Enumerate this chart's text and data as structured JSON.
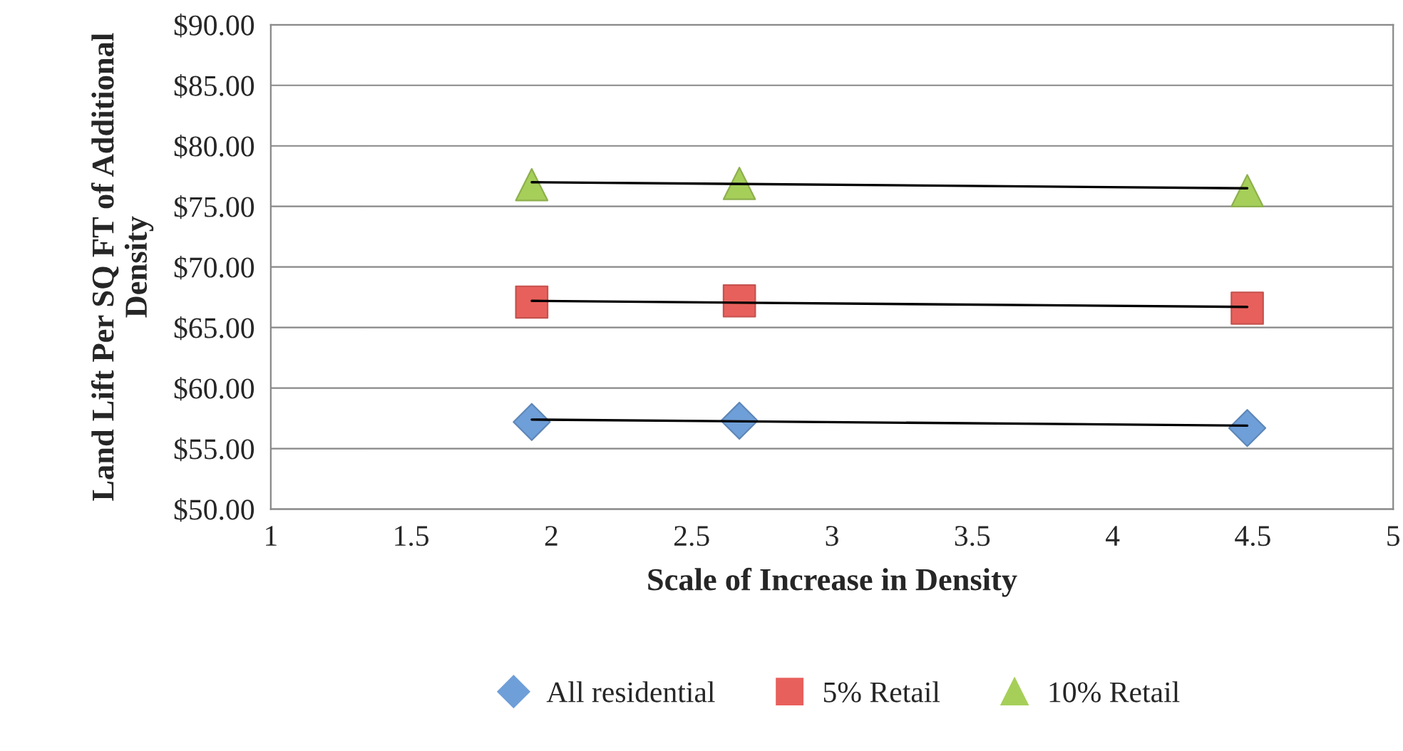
{
  "chart_data": {
    "type": "scatter",
    "xlabel": "Scale of Increase in Density",
    "ylabel": "Land Lift Per SQ FT of Additional Density",
    "xlim": [
      1,
      5
    ],
    "xticks": [
      1,
      1.5,
      2,
      2.5,
      3,
      3.5,
      4,
      4.5,
      5
    ],
    "ylim": [
      50,
      90
    ],
    "yticks": [
      {
        "value": 50,
        "label": "$50.00"
      },
      {
        "value": 55,
        "label": "$55.00"
      },
      {
        "value": 60,
        "label": "$60.00"
      },
      {
        "value": 65,
        "label": "$65.00"
      },
      {
        "value": 70,
        "label": "$70.00"
      },
      {
        "value": 75,
        "label": "$75.00"
      },
      {
        "value": 80,
        "label": "$80.00"
      },
      {
        "value": 85,
        "label": "$85.00"
      },
      {
        "value": 90,
        "label": "$90.00"
      }
    ],
    "grid": "y",
    "legend": "bottom",
    "series": [
      {
        "name": "All residential",
        "color": "#6f9fd8",
        "marker": "diamond",
        "x": [
          1.93,
          2.67,
          4.48
        ],
        "values": [
          57.2,
          57.3,
          56.7
        ]
      },
      {
        "name": "5% Retail",
        "color": "#e8605c",
        "marker": "square",
        "x": [
          1.93,
          2.67,
          4.48
        ],
        "values": [
          67.1,
          67.2,
          66.6
        ]
      },
      {
        "name": "10% Retail",
        "color": "#a6cf5a",
        "marker": "triangle",
        "x": [
          1.93,
          2.67,
          4.48
        ],
        "values": [
          76.8,
          76.9,
          76.3
        ]
      },
      {
        "type": "line",
        "color": "#000000",
        "marker": "none",
        "x": [
          1.93,
          4.48
        ],
        "values": [
          57.4,
          56.9
        ]
      },
      {
        "type": "line",
        "color": "#000000",
        "marker": "none",
        "x": [
          1.93,
          4.48
        ],
        "values": [
          67.2,
          66.7
        ]
      },
      {
        "type": "line",
        "color": "#000000",
        "marker": "none",
        "x": [
          1.93,
          4.48
        ],
        "values": [
          77.0,
          76.5
        ]
      }
    ]
  }
}
